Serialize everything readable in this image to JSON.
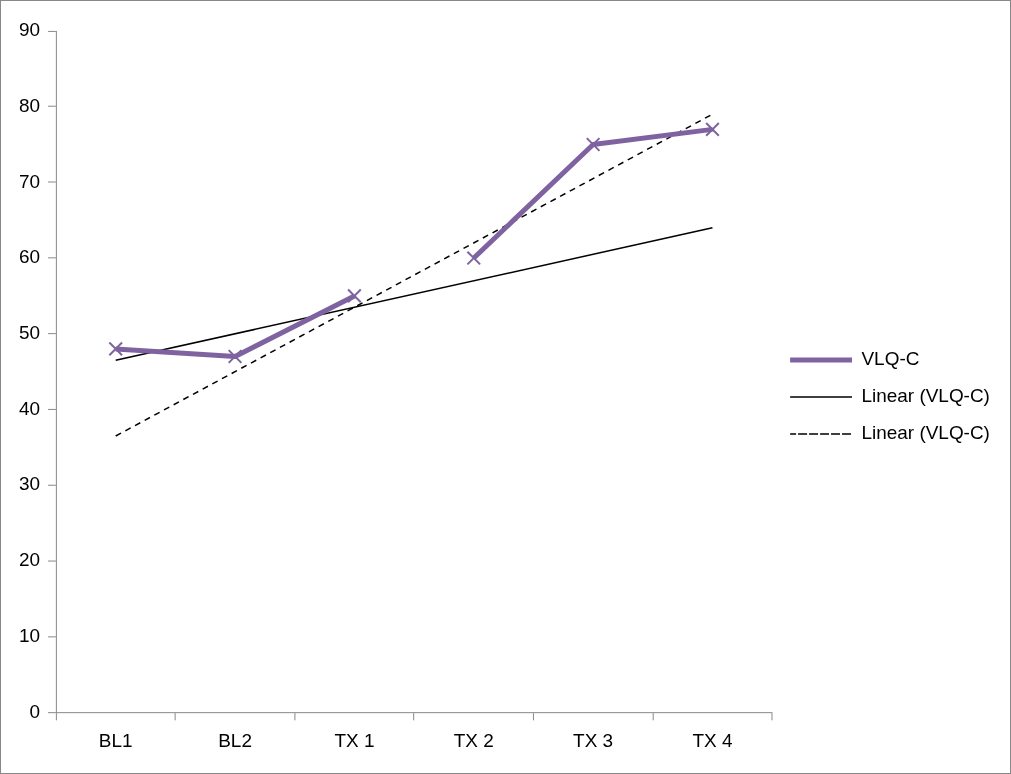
{
  "chart_data": {
    "type": "line",
    "categories": [
      "BL1",
      "BL2",
      "TX 1",
      "TX 2",
      "TX 3",
      "TX 4"
    ],
    "series": [
      {
        "name": "VLQ-C",
        "color": "#7f63a1",
        "values": [
          48,
          47,
          55,
          null,
          null,
          null
        ],
        "marker": "cross"
      },
      {
        "color": "#7f63a1",
        "values": [
          null,
          null,
          null,
          60,
          75,
          77
        ],
        "marker": "cross"
      },
      {
        "name": "Linear (VLQ-C)",
        "color": "#000000",
        "x": [
          "BL1",
          "TX 4"
        ],
        "values": [
          46.5,
          64
        ],
        "line_style": "solid",
        "marker": "none"
      },
      {
        "name": "Linear (VLQ-C)",
        "color": "#000000",
        "x": [
          "BL1",
          "TX 4"
        ],
        "values": [
          36.5,
          79
        ],
        "line_style": "dashed",
        "marker": "none"
      }
    ],
    "ylim": [
      0,
      90
    ],
    "yticks": [
      0,
      10,
      20,
      30,
      40,
      50,
      60,
      70,
      80,
      90
    ],
    "grid": false,
    "legend": "right"
  }
}
